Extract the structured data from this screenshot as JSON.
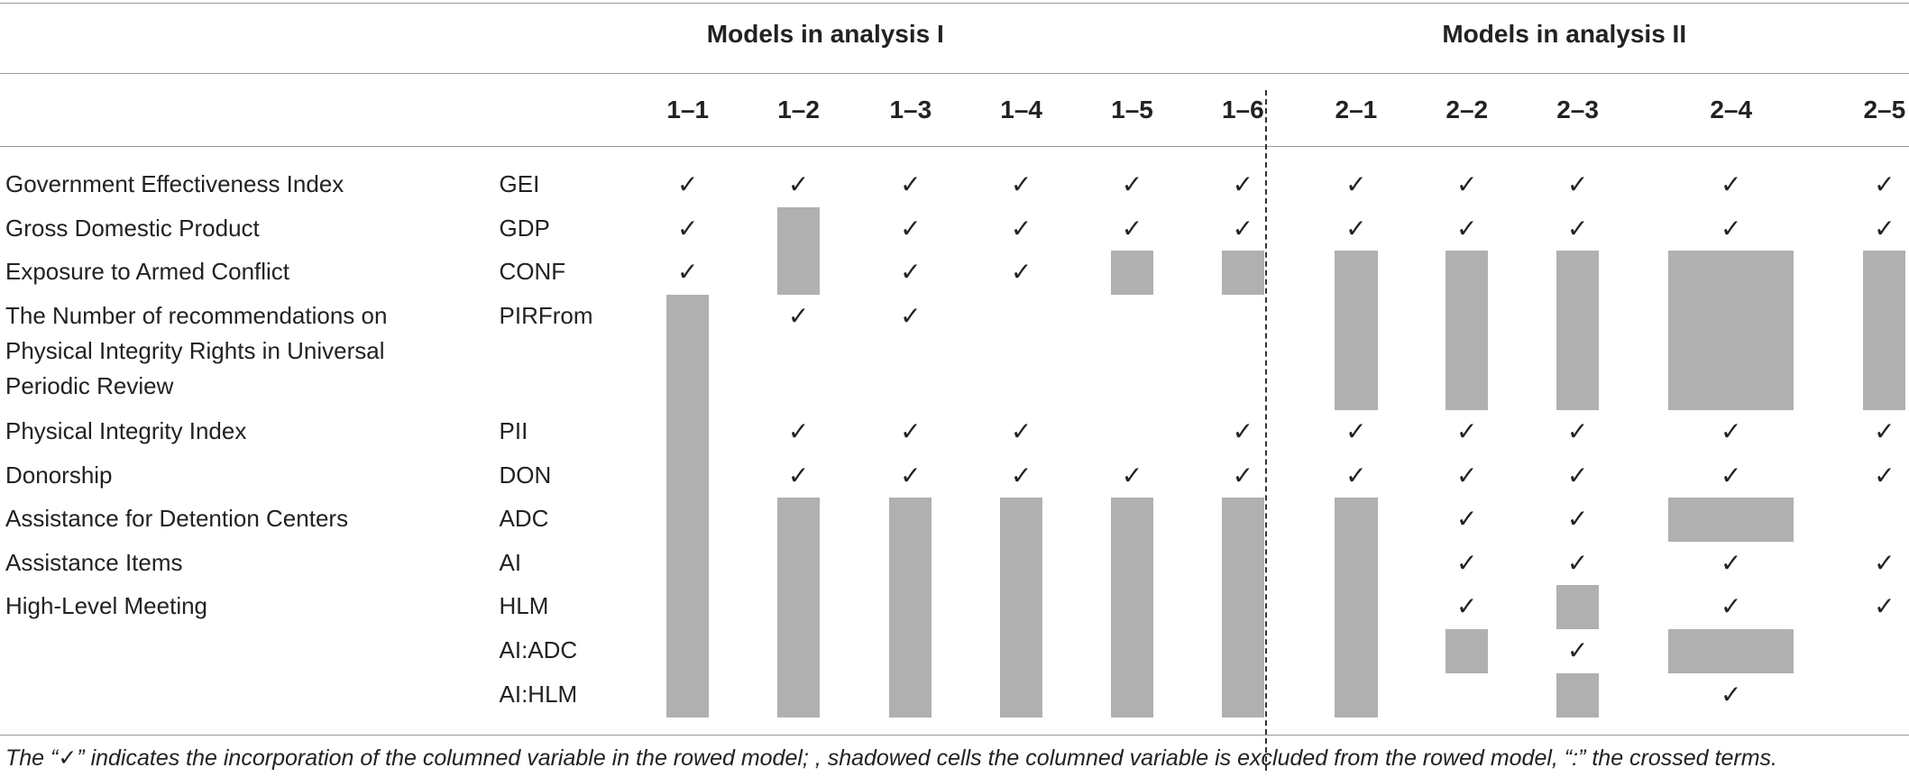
{
  "header": {
    "groups": [
      "Models in analysis I",
      "Models in analysis II"
    ],
    "columns": [
      "1–1",
      "1–2",
      "1–3",
      "1–4",
      "1–5",
      "1–6",
      "2–1",
      "2–2",
      "2–3",
      "2–4",
      "2–5"
    ]
  },
  "rows": [
    {
      "name": "Government Effectiveness Index",
      "code": "GEI",
      "cells": [
        "✓",
        "✓",
        "✓",
        "✓",
        "✓",
        "✓",
        "✓",
        "✓",
        "✓",
        "✓",
        "✓"
      ],
      "shaded": [
        false,
        false,
        false,
        false,
        false,
        false,
        false,
        false,
        false,
        false,
        false
      ]
    },
    {
      "name": "Gross Domestic Product",
      "code": "GDP",
      "cells": [
        "✓",
        null,
        "✓",
        "✓",
        "✓",
        "✓",
        "✓",
        "✓",
        "✓",
        "✓",
        "✓"
      ],
      "shaded": [
        false,
        true,
        false,
        false,
        false,
        false,
        false,
        false,
        false,
        false,
        false
      ]
    },
    {
      "name": "Exposure to Armed Conflict",
      "code": "CONF",
      "cells": [
        "✓",
        null,
        "✓",
        "✓",
        null,
        null,
        null,
        null,
        null,
        null,
        null
      ],
      "shaded": [
        false,
        true,
        false,
        false,
        true,
        true,
        true,
        true,
        true,
        true,
        true
      ]
    },
    {
      "name": "The Number of recommendations on Physical Integrity Rights in Universal Periodic Review",
      "code": "PIRFrom",
      "cells": [
        null,
        "✓",
        "✓",
        null,
        null,
        null,
        null,
        null,
        null,
        null,
        null
      ],
      "shaded": [
        true,
        false,
        false,
        false,
        false,
        false,
        true,
        true,
        true,
        true,
        true
      ]
    },
    {
      "name": "Physical Integrity Index",
      "code": "PII",
      "cells": [
        null,
        "✓",
        "✓",
        "✓",
        null,
        "✓",
        "✓",
        "✓",
        "✓",
        "✓",
        "✓"
      ],
      "shaded": [
        true,
        false,
        false,
        false,
        false,
        false,
        false,
        false,
        false,
        false,
        false
      ]
    },
    {
      "name": "Donorship",
      "code": "DON",
      "cells": [
        null,
        "✓",
        "✓",
        "✓",
        "✓",
        "✓",
        "✓",
        "✓",
        "✓",
        "✓",
        "✓"
      ],
      "shaded": [
        true,
        false,
        false,
        false,
        false,
        false,
        false,
        false,
        false,
        false,
        false
      ]
    },
    {
      "name": "Assistance for Detention Centers",
      "code": "ADC",
      "cells": [
        null,
        null,
        null,
        null,
        null,
        null,
        null,
        "✓",
        "✓",
        null,
        null
      ],
      "shaded": [
        true,
        true,
        true,
        true,
        true,
        true,
        true,
        false,
        false,
        true,
        false
      ]
    },
    {
      "name": "Assistance Items",
      "code": "AI",
      "cells": [
        null,
        null,
        null,
        null,
        null,
        null,
        null,
        "✓",
        "✓",
        "✓",
        "✓"
      ],
      "shaded": [
        true,
        true,
        true,
        true,
        true,
        true,
        true,
        false,
        false,
        false,
        false
      ]
    },
    {
      "name": "High-Level Meeting",
      "code": "HLM",
      "cells": [
        null,
        null,
        null,
        null,
        null,
        null,
        null,
        "✓",
        null,
        "✓",
        "✓"
      ],
      "shaded": [
        true,
        true,
        true,
        true,
        true,
        true,
        true,
        false,
        true,
        false,
        false
      ]
    },
    {
      "name": null,
      "code": "AI:ADC",
      "cells": [
        null,
        null,
        null,
        null,
        null,
        null,
        null,
        null,
        "✓",
        null,
        null
      ],
      "shaded": [
        true,
        true,
        true,
        true,
        true,
        true,
        true,
        true,
        false,
        true,
        false
      ]
    },
    {
      "name": null,
      "code": "AI:HLM",
      "cells": [
        null,
        null,
        null,
        null,
        null,
        null,
        null,
        null,
        null,
        "✓",
        null
      ],
      "shaded": [
        true,
        true,
        true,
        true,
        true,
        true,
        true,
        false,
        true,
        false,
        false
      ]
    }
  ],
  "footnote": "The “✓” indicates the incorporation of the columned variable in the rowed model; , shadowed cells the columned variable is excluded from the rowed model, “:” the crossed terms."
}
